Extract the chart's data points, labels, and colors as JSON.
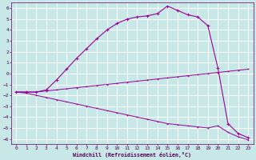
{
  "xlabel": "Windchill (Refroidissement éolien,°C)",
  "background_color": "#c8e8e8",
  "grid_color": "#ffffff",
  "line_color": "#990099",
  "xlim": [
    -0.5,
    23.5
  ],
  "ylim": [
    -6.5,
    6.5
  ],
  "xticks": [
    0,
    1,
    2,
    3,
    4,
    5,
    6,
    7,
    8,
    9,
    10,
    11,
    12,
    13,
    14,
    15,
    16,
    17,
    18,
    19,
    20,
    21,
    22,
    23
  ],
  "yticks": [
    -6,
    -5,
    -4,
    -3,
    -2,
    -1,
    0,
    1,
    2,
    3,
    4,
    5,
    6
  ],
  "curve1_x": [
    0,
    1,
    2,
    3,
    4,
    5,
    6,
    7,
    8,
    9,
    10,
    11,
    12,
    13,
    14,
    15,
    16,
    17,
    18,
    19,
    20,
    21,
    22,
    23
  ],
  "curve1_y": [
    -1.7,
    -1.7,
    -1.7,
    -1.5,
    -0.6,
    0.4,
    1.4,
    2.3,
    3.2,
    4.0,
    4.6,
    5.0,
    5.2,
    5.3,
    5.5,
    6.2,
    5.8,
    5.4,
    5.2,
    4.4,
    0.5,
    -4.6,
    -5.5,
    -5.9
  ],
  "curve2_x": [
    0,
    1,
    2,
    3,
    4,
    5,
    6,
    7,
    8,
    9,
    10,
    11,
    12,
    13,
    14,
    15,
    16,
    17,
    18,
    19,
    20,
    21,
    22,
    23
  ],
  "curve2_y": [
    -1.7,
    -1.7,
    -1.7,
    -1.6,
    -1.5,
    -1.4,
    -1.3,
    -1.2,
    -1.1,
    -1.0,
    -0.9,
    -0.8,
    -0.7,
    -0.6,
    -0.5,
    -0.4,
    -0.3,
    -0.2,
    -0.1,
    0.0,
    0.1,
    0.2,
    0.3,
    0.4
  ],
  "curve3_x": [
    0,
    1,
    2,
    3,
    4,
    5,
    6,
    7,
    8,
    9,
    10,
    11,
    12,
    13,
    14,
    15,
    16,
    17,
    18,
    19,
    20,
    21,
    22,
    23
  ],
  "curve3_y": [
    -1.7,
    -1.8,
    -2.0,
    -2.2,
    -2.4,
    -2.6,
    -2.8,
    -3.0,
    -3.2,
    -3.4,
    -3.6,
    -3.8,
    -4.0,
    -4.2,
    -4.4,
    -4.6,
    -4.7,
    -4.8,
    -4.9,
    -5.0,
    -4.8,
    -5.4,
    -5.8,
    -6.1
  ]
}
